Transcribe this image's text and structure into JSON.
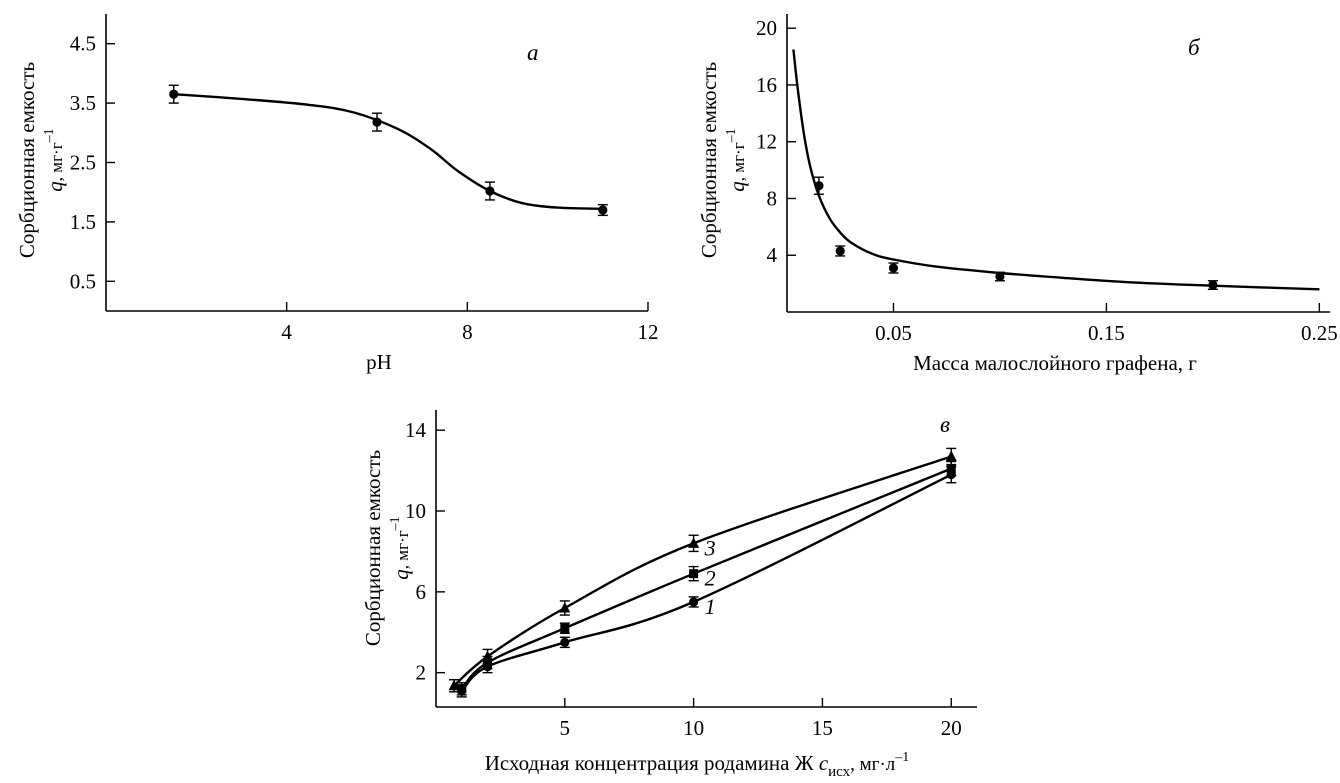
{
  "chart_data": [
    {
      "id": "a",
      "type": "line",
      "panel_label": "а",
      "xlabel": "pH",
      "ylabel_line1": "Сорбционная емкость",
      "ylabel_symbol": "q",
      "ylabel_unit": ", мг·г",
      "ylabel_exp": "–1",
      "xlim": [
        0,
        12
      ],
      "ylim": [
        0,
        5
      ],
      "xticks": [
        4,
        8,
        12
      ],
      "xtick_labels": [
        "4",
        "8",
        "12"
      ],
      "yticks": [
        0.5,
        1.5,
        2.5,
        3.5,
        4.5
      ],
      "ytick_labels": [
        "0.5",
        "1.5",
        "2.5",
        "3.5",
        "4.5"
      ],
      "series": [
        {
          "points": [
            {
              "x": 1.5,
              "y": 3.65,
              "err": 0.15
            },
            {
              "x": 6.0,
              "y": 3.18,
              "err": 0.15
            },
            {
              "x": 8.5,
              "y": 2.02,
              "err": 0.15
            },
            {
              "x": 11.0,
              "y": 1.7,
              "err": 0.09
            }
          ],
          "marker": "circle",
          "fit": [
            [
              1.5,
              3.65
            ],
            [
              3,
              3.57
            ],
            [
              4.5,
              3.47
            ],
            [
              5.5,
              3.34
            ],
            [
              6.5,
              3.05
            ],
            [
              7.2,
              2.72
            ],
            [
              7.8,
              2.35
            ],
            [
              8.5,
              2.02
            ],
            [
              9.2,
              1.82
            ],
            [
              10,
              1.74
            ],
            [
              11,
              1.72
            ]
          ]
        }
      ]
    },
    {
      "id": "b",
      "type": "line",
      "panel_label": "б",
      "xlabel": "Масса малослойного графена, г",
      "ylabel_line1": "Сорбционная емкость",
      "ylabel_symbol": "q",
      "ylabel_unit": ", мг·г",
      "ylabel_exp": "–1",
      "xlim": [
        0,
        0.255
      ],
      "ylim": [
        0,
        21
      ],
      "xticks": [
        0.05,
        0.15,
        0.25
      ],
      "xtick_labels": [
        "0.05",
        "0.15",
        "0.25"
      ],
      "yticks": [
        4,
        8,
        12,
        16,
        20
      ],
      "ytick_labels": [
        "4",
        "8",
        "12",
        "16",
        "20"
      ],
      "series": [
        {
          "points": [
            {
              "x": 0.015,
              "y": 8.9,
              "err": 0.6
            },
            {
              "x": 0.025,
              "y": 4.3,
              "err": 0.35
            },
            {
              "x": 0.05,
              "y": 3.1,
              "err": 0.35
            },
            {
              "x": 0.1,
              "y": 2.5,
              "err": 0.3
            },
            {
              "x": 0.2,
              "y": 1.9,
              "err": 0.3
            }
          ],
          "marker": "circle",
          "fit": [
            [
              0.003,
              18.5
            ],
            [
              0.005,
              15.8
            ],
            [
              0.008,
              12.5
            ],
            [
              0.011,
              10.2
            ],
            [
              0.015,
              8.2
            ],
            [
              0.02,
              6.6
            ],
            [
              0.025,
              5.6
            ],
            [
              0.03,
              4.9
            ],
            [
              0.04,
              4.1
            ],
            [
              0.05,
              3.7
            ],
            [
              0.07,
              3.2
            ],
            [
              0.1,
              2.75
            ],
            [
              0.13,
              2.4
            ],
            [
              0.16,
              2.1
            ],
            [
              0.2,
              1.85
            ],
            [
              0.25,
              1.6
            ]
          ]
        }
      ]
    },
    {
      "id": "c",
      "type": "line",
      "panel_label": "в",
      "xlabel": "Исходная концентрация родамина Ж ",
      "xlabel_symbol": "c",
      "xlabel_sub": "исх",
      "xlabel_unit": ", мг·л",
      "xlabel_exp": "–1",
      "ylabel_line1": "Сорбционная емкость",
      "ylabel_symbol": "q",
      "ylabel_unit": ", мг·г",
      "ylabel_exp": "–1",
      "xlim": [
        0,
        21
      ],
      "ylim": [
        0.3,
        15
      ],
      "xticks": [
        5,
        10,
        15,
        20
      ],
      "xtick_labels": [
        "5",
        "10",
        "15",
        "20"
      ],
      "yticks": [
        2,
        6,
        10,
        14
      ],
      "ytick_labels": [
        "2",
        "6",
        "10",
        "14"
      ],
      "series": [
        {
          "name": "1",
          "marker": "circle",
          "points": [
            {
              "x": 1,
              "y": 1.1,
              "err": 0.3
            },
            {
              "x": 2,
              "y": 2.3,
              "err": 0.3
            },
            {
              "x": 5,
              "y": 3.5,
              "err": 0.25
            },
            {
              "x": 10,
              "y": 5.5,
              "err": 0.25
            },
            {
              "x": 20,
              "y": 11.8,
              "err": 0.4
            }
          ]
        },
        {
          "name": "2",
          "marker": "square",
          "points": [
            {
              "x": 1,
              "y": 1.2,
              "err": 0.3
            },
            {
              "x": 2,
              "y": 2.5,
              "err": 0.3
            },
            {
              "x": 5,
              "y": 4.2,
              "err": 0.25
            },
            {
              "x": 10,
              "y": 6.9,
              "err": 0.35
            },
            {
              "x": 20,
              "y": 12.1,
              "err": 0.35
            }
          ]
        },
        {
          "name": "3",
          "marker": "triangle",
          "points": [
            {
              "x": 0.7,
              "y": 1.35,
              "err": 0.3
            },
            {
              "x": 2,
              "y": 2.8,
              "err": 0.35
            },
            {
              "x": 5,
              "y": 5.2,
              "err": 0.35
            },
            {
              "x": 10,
              "y": 8.4,
              "err": 0.4
            },
            {
              "x": 20,
              "y": 12.7,
              "err": 0.4
            }
          ]
        }
      ]
    }
  ]
}
